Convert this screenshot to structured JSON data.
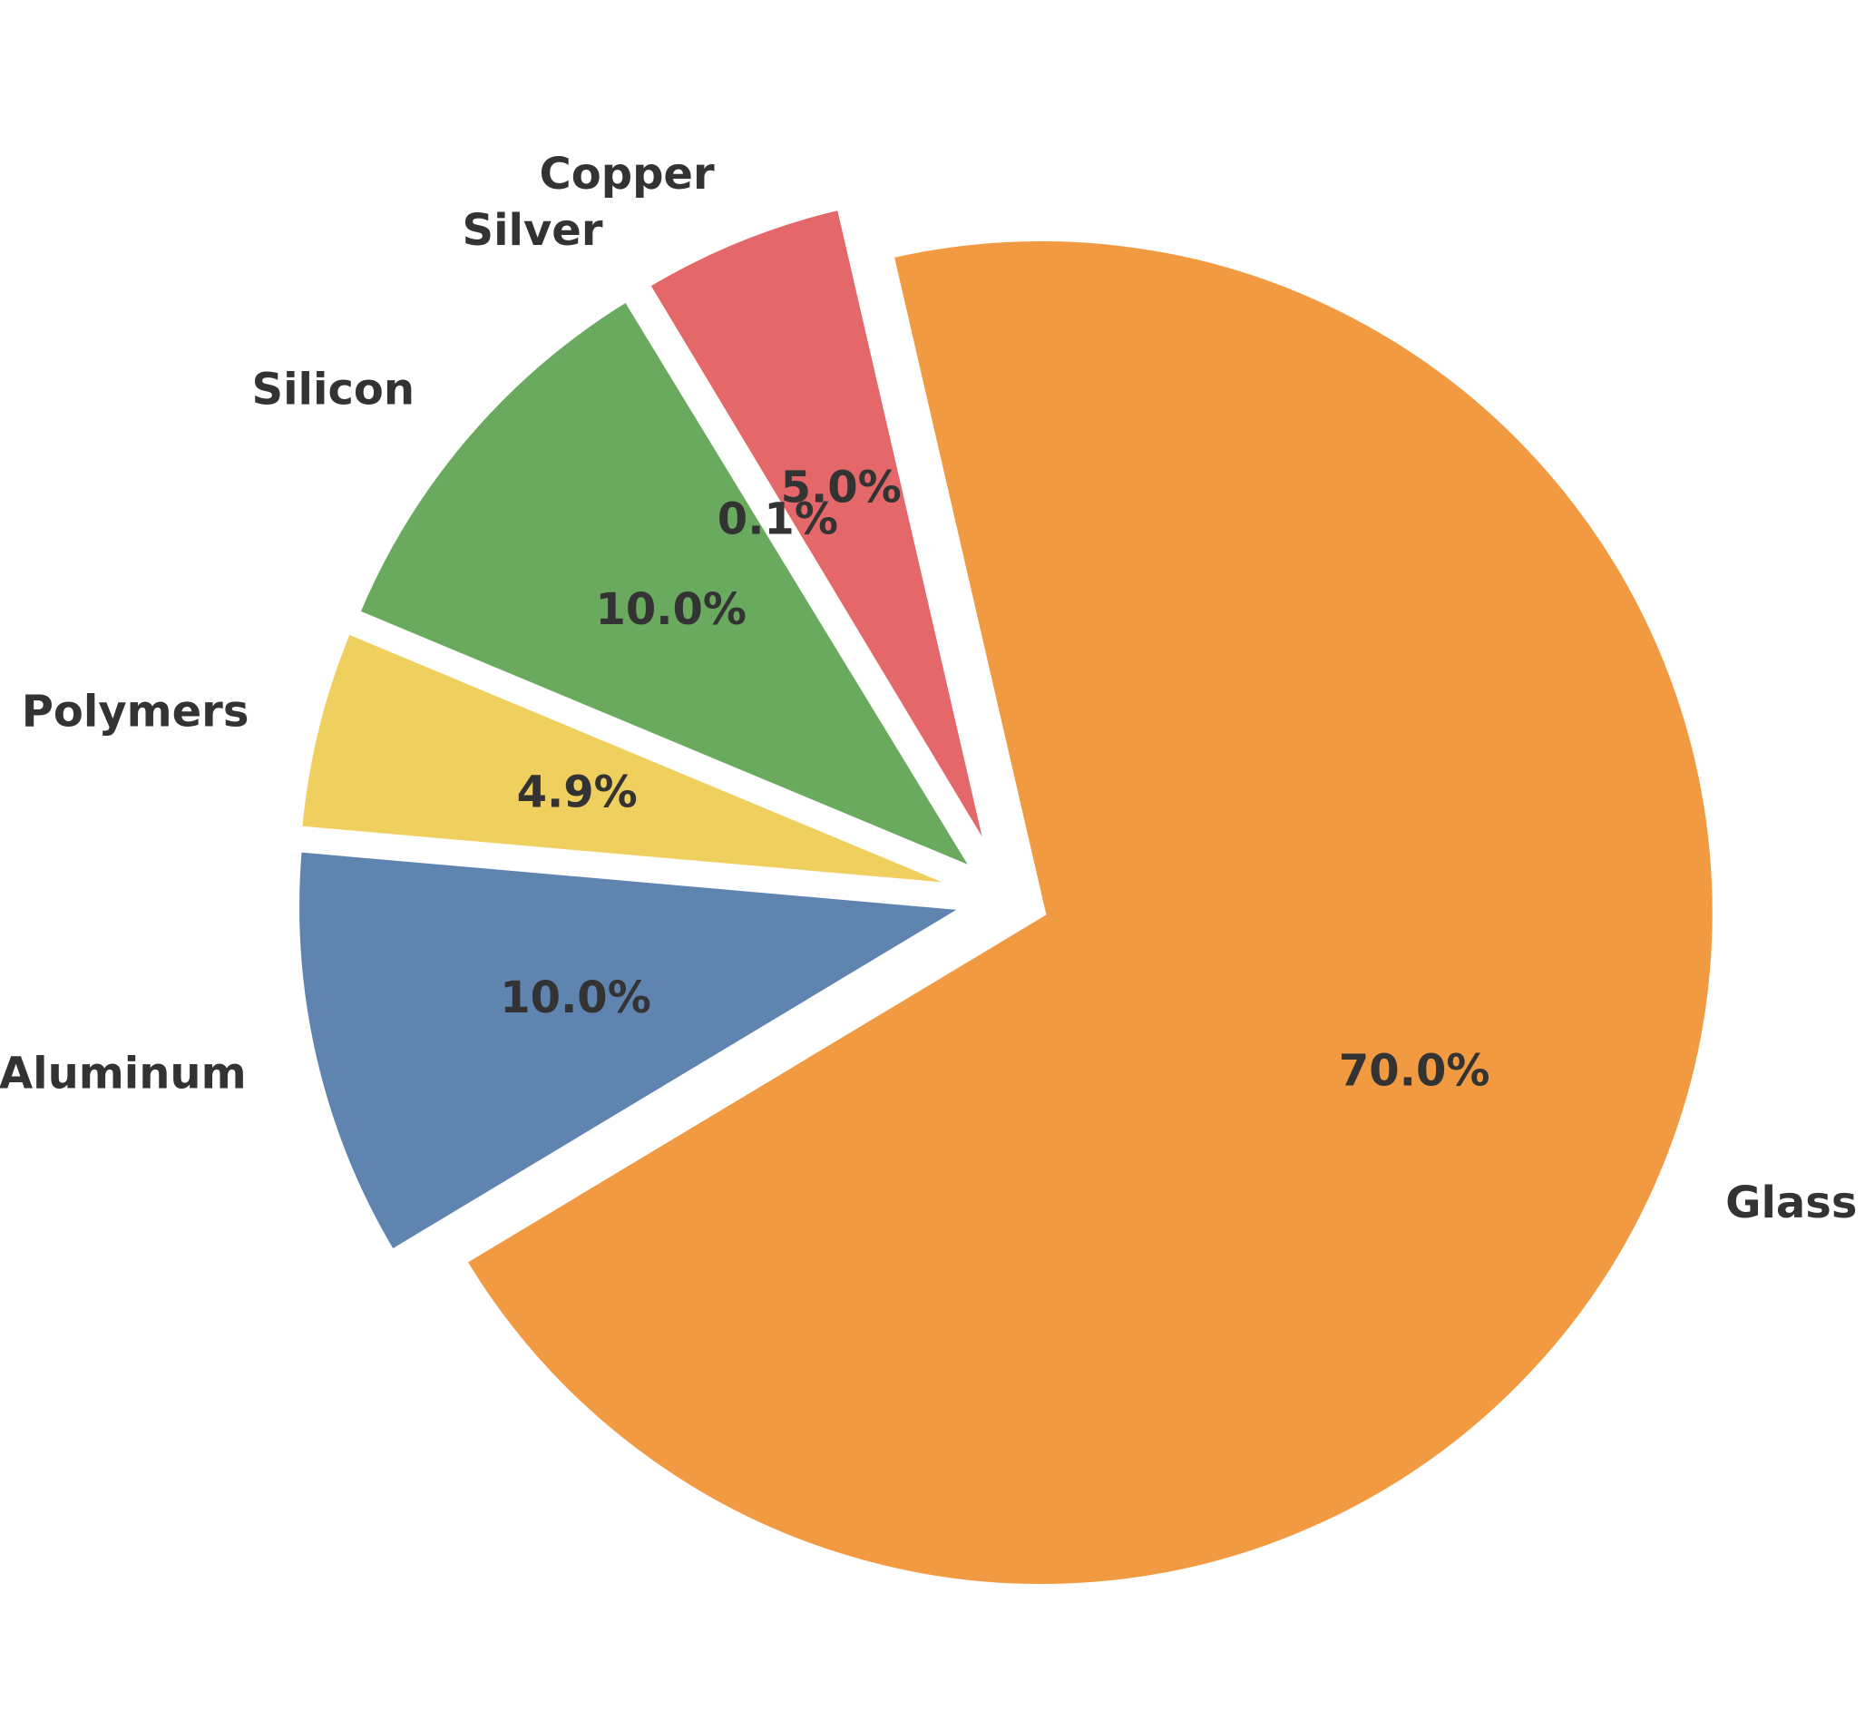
{
  "chart_data": {
    "type": "pie",
    "title": "",
    "categories": [
      "Aluminum",
      "Glass",
      "Copper",
      "Silver",
      "Silicon",
      "Polymers"
    ],
    "values": [
      10.0,
      70.0,
      5.0,
      0.1,
      10.0,
      4.9
    ],
    "percent_labels": [
      "10.0%",
      "70.0%",
      "5.0%",
      "0.1%",
      "10.0%",
      "4.9%"
    ],
    "colors": [
      "#5f84b0",
      "#f29a41",
      "#e4686a",
      "#86bcb6",
      "#6aaa5f",
      "#efcf5e"
    ],
    "start_angle_deg": 175,
    "direction": "counterclockwise",
    "exploded": true,
    "legend": "none"
  }
}
